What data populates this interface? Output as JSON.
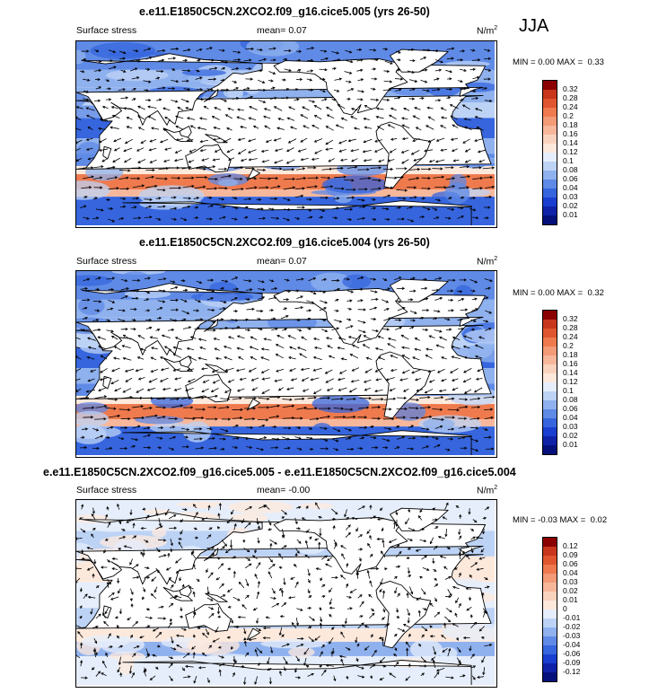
{
  "season": "JJA",
  "panels": [
    {
      "title": "e.e11.E1850C5CN.2XCO2.f09_g16.cice5.005 (yrs 26-50)",
      "left_label": "Surface stress",
      "mean_label": "mean=",
      "mean_value": "0.07",
      "units": "N/m",
      "units_sup": "2",
      "min_label": "MIN =",
      "min_value": "0.00",
      "max_label": "MAX =",
      "max_value": "0.33",
      "colorbar_labels": [
        "0.32",
        "0.28",
        "0.24",
        "0.2",
        "0.18",
        "0.16",
        "0.14",
        "0.12",
        "0.1",
        "0.08",
        "0.06",
        "0.04",
        "0.03",
        "0.02",
        "0.01"
      ],
      "colors": [
        "#8b0000",
        "#c8371c",
        "#e0562e",
        "#ee7a4e",
        "#f39a77",
        "#f7b79b",
        "#fad3be",
        "#fde9dc",
        "#e6eefb",
        "#bdd3f5",
        "#8fb1ee",
        "#5f8ae6",
        "#3665de",
        "#1a3fd0",
        "#0f22a8",
        "#06107a"
      ]
    },
    {
      "title": "e.e11.E1850C5CN.2XCO2.f09_g16.cice5.004 (yrs 26-50)",
      "left_label": "Surface stress",
      "mean_label": "mean=",
      "mean_value": "0.07",
      "units": "N/m",
      "units_sup": "2",
      "min_label": "MIN =",
      "min_value": "0.00",
      "max_label": "MAX =",
      "max_value": "0.32",
      "colorbar_labels": [
        "0.32",
        "0.28",
        "0.24",
        "0.2",
        "0.18",
        "0.16",
        "0.14",
        "0.12",
        "0.1",
        "0.08",
        "0.06",
        "0.04",
        "0.03",
        "0.02",
        "0.01"
      ],
      "colors": [
        "#8b0000",
        "#c8371c",
        "#e0562e",
        "#ee7a4e",
        "#f39a77",
        "#f7b79b",
        "#fad3be",
        "#fde9dc",
        "#e6eefb",
        "#bdd3f5",
        "#8fb1ee",
        "#5f8ae6",
        "#3665de",
        "#1a3fd0",
        "#0f22a8",
        "#06107a"
      ]
    },
    {
      "title": "e.e11.E1850C5CN.2XCO2.f09_g16.cice5.005 - e.e11.E1850C5CN.2XCO2.f09_g16.cice5.004",
      "left_label": "Surface stress",
      "mean_label": "mean=",
      "mean_value": "-0.00",
      "units": "N/m",
      "units_sup": "2",
      "min_label": "MIN =",
      "min_value": "-0.03",
      "max_label": "MAX =",
      "max_value": "0.02",
      "colorbar_labels": [
        "0.12",
        "0.09",
        "0.06",
        "0.04",
        "0.03",
        "0.02",
        "0.01",
        "0",
        "-0.01",
        "-0.02",
        "-0.03",
        "-0.04",
        "-0.06",
        "-0.09",
        "-0.12"
      ],
      "colors": [
        "#8b0000",
        "#c8371c",
        "#e0562e",
        "#ee7a4e",
        "#f39a77",
        "#f7b79b",
        "#fad3be",
        "#fde9dc",
        "#e6eefb",
        "#bdd3f5",
        "#8fb1ee",
        "#5f8ae6",
        "#3665de",
        "#1a3fd0",
        "#0f22a8",
        "#06107a"
      ]
    }
  ],
  "chart_data": [
    {
      "type": "heatmap",
      "title": "e.e11.E1850C5CN.2XCO2.f09_g16.cice5.005 (yrs 26-50)",
      "variable": "Surface stress",
      "units": "N/m2",
      "season": "JJA",
      "mean": 0.07,
      "min": 0.0,
      "max": 0.33,
      "levels": [
        0.01,
        0.02,
        0.03,
        0.04,
        0.06,
        0.08,
        0.1,
        0.12,
        0.14,
        0.16,
        0.18,
        0.2,
        0.24,
        0.28,
        0.32
      ]
    },
    {
      "type": "heatmap",
      "title": "e.e11.E1850C5CN.2XCO2.f09_g16.cice5.004 (yrs 26-50)",
      "variable": "Surface stress",
      "units": "N/m2",
      "season": "JJA",
      "mean": 0.07,
      "min": 0.0,
      "max": 0.32,
      "levels": [
        0.01,
        0.02,
        0.03,
        0.04,
        0.06,
        0.08,
        0.1,
        0.12,
        0.14,
        0.16,
        0.18,
        0.2,
        0.24,
        0.28,
        0.32
      ]
    },
    {
      "type": "heatmap",
      "title": "e.e11.E1850C5CN.2XCO2.f09_g16.cice5.005 - e.e11.E1850C5CN.2XCO2.f09_g16.cice5.004",
      "variable": "Surface stress",
      "units": "N/m2",
      "season": "JJA",
      "mean": -0.0,
      "min": -0.03,
      "max": 0.02,
      "levels": [
        -0.12,
        -0.09,
        -0.06,
        -0.04,
        -0.03,
        -0.02,
        -0.01,
        0,
        0.01,
        0.02,
        0.03,
        0.04,
        0.06,
        0.09,
        0.12
      ]
    }
  ]
}
